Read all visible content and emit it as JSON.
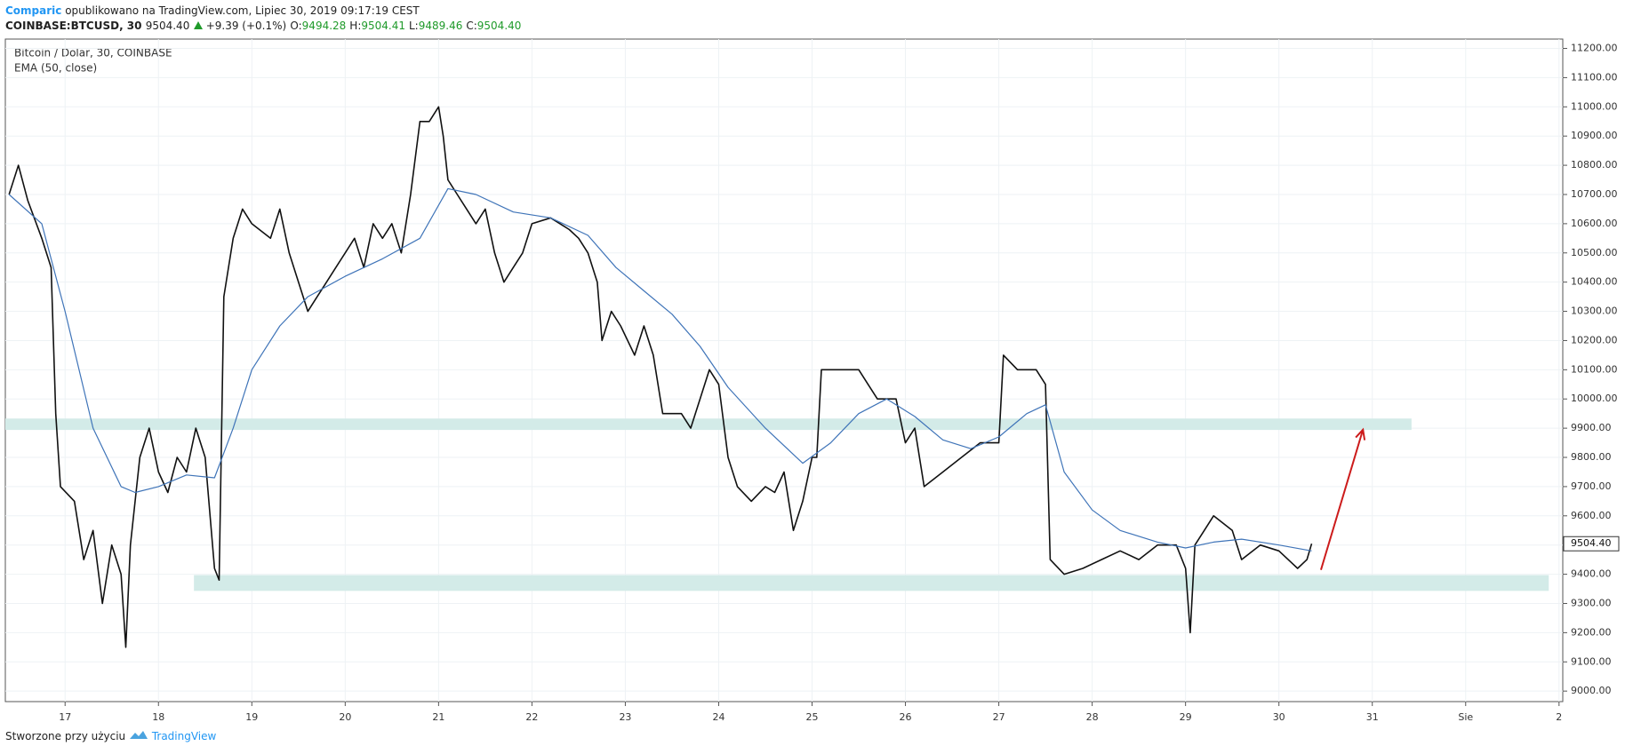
{
  "header": {
    "author": "Comparic",
    "published": "opublikowano na TradingView.com, Lipiec 30, 2019 09:17:19 CEST",
    "symbol": "COINBASE:BTCUSD, 30",
    "price": "9504.40",
    "change": "+9.39 (+0.1%)",
    "ohlc": [
      {
        "label": "O:",
        "value": "9494.28"
      },
      {
        "label": "H:",
        "value": "9504.41"
      },
      {
        "label": "L:",
        "value": "9489.46"
      },
      {
        "label": "C:",
        "value": "9504.40"
      }
    ]
  },
  "footer": {
    "text": "Stworzone przy użyciu",
    "brand": "TradingView"
  },
  "chart_data": {
    "type": "line",
    "xlim": [
      16.36,
      33.04
    ],
    "xticks": [
      17,
      18,
      19,
      20,
      21,
      22,
      23,
      24,
      25,
      26,
      27,
      28,
      29,
      30,
      31,
      {
        "value": 32,
        "label": "Sie"
      },
      {
        "value": 33,
        "label": "2"
      }
    ],
    "ylim": [
      8964,
      11232
    ],
    "yticks": [
      {
        "value": 9000,
        "label": "9000.00"
      },
      {
        "value": 9100,
        "label": "9100.00"
      },
      {
        "value": 9200,
        "label": "9200.00"
      },
      {
        "value": 9300,
        "label": "9300.00"
      },
      {
        "value": 9400,
        "label": "9400.00"
      },
      {
        "value": 9500,
        "label": "9500.00"
      },
      {
        "value": 9600,
        "label": "9600.00"
      },
      {
        "value": 9700,
        "label": "9700.00"
      },
      {
        "value": 9800,
        "label": "9800.00"
      },
      {
        "value": 9900,
        "label": "9900.00"
      },
      {
        "value": 10000,
        "label": "10000.00"
      },
      {
        "value": 10100,
        "label": "10100.00"
      },
      {
        "value": 10200,
        "label": "10200.00"
      },
      {
        "value": 10300,
        "label": "10300.00"
      },
      {
        "value": 10400,
        "label": "10400.00"
      },
      {
        "value": 10500,
        "label": "10500.00"
      },
      {
        "value": 10600,
        "label": "10600.00"
      },
      {
        "value": 10700,
        "label": "10700.00"
      },
      {
        "value": 10800,
        "label": "10800.00"
      },
      {
        "value": 10900,
        "label": "10900.00"
      },
      {
        "value": 11000,
        "label": "11000.00"
      },
      {
        "value": 11100,
        "label": "11100.00"
      },
      {
        "value": 11200,
        "label": "11200.00"
      }
    ],
    "grid": true,
    "last_price": {
      "value": 9504.4,
      "label": "9504.40"
    },
    "series": [
      {
        "name": "Bitcoin / Dolar, 30, COINBASE",
        "color": "#111111",
        "x": [
          16.4,
          16.5,
          16.6,
          16.75,
          16.85,
          16.9,
          16.95,
          17.1,
          17.2,
          17.3,
          17.4,
          17.5,
          17.6,
          17.65,
          17.7,
          17.8,
          17.9,
          18.0,
          18.1,
          18.2,
          18.3,
          18.4,
          18.5,
          18.6,
          18.65,
          18.7,
          18.8,
          18.9,
          19.0,
          19.2,
          19.3,
          19.4,
          19.5,
          19.6,
          19.7,
          19.8,
          19.9,
          20.0,
          20.1,
          20.2,
          20.3,
          20.4,
          20.5,
          20.6,
          20.7,
          20.8,
          20.9,
          21.0,
          21.05,
          21.1,
          21.2,
          21.3,
          21.4,
          21.5,
          21.6,
          21.7,
          21.8,
          21.9,
          22.0,
          22.2,
          22.4,
          22.5,
          22.6,
          22.7,
          22.75,
          22.85,
          22.95,
          23.1,
          23.2,
          23.3,
          23.4,
          23.5,
          23.6,
          23.7,
          23.8,
          23.9,
          24.0,
          24.1,
          24.2,
          24.35,
          24.5,
          24.6,
          24.7,
          24.8,
          24.9,
          25.0,
          25.05,
          25.1,
          25.3,
          25.5,
          25.6,
          25.7,
          25.9,
          26.0,
          26.1,
          26.2,
          26.4,
          26.6,
          26.8,
          27.0,
          27.05,
          27.2,
          27.4,
          27.5,
          27.55,
          27.7,
          27.9,
          28.1,
          28.3,
          28.5,
          28.7,
          28.9,
          29.0,
          29.05,
          29.1,
          29.2,
          29.3,
          29.5,
          29.6,
          29.8,
          30.0,
          30.2,
          30.3,
          30.35
        ],
        "values": [
          10700,
          10800,
          10680,
          10550,
          10450,
          9950,
          9700,
          9650,
          9450,
          9550,
          9300,
          9500,
          9400,
          9150,
          9500,
          9800,
          9900,
          9750,
          9680,
          9800,
          9750,
          9900,
          9800,
          9420,
          9380,
          10350,
          10550,
          10650,
          10600,
          10550,
          10650,
          10500,
          10400,
          10300,
          10350,
          10400,
          10450,
          10500,
          10550,
          10450,
          10600,
          10550,
          10600,
          10500,
          10700,
          10950,
          10950,
          11000,
          10900,
          10750,
          10700,
          10650,
          10600,
          10650,
          10500,
          10400,
          10450,
          10500,
          10600,
          10620,
          10580,
          10550,
          10500,
          10400,
          10200,
          10300,
          10250,
          10150,
          10250,
          10150,
          9950,
          9950,
          9950,
          9900,
          10000,
          10100,
          10050,
          9800,
          9700,
          9650,
          9700,
          9680,
          9750,
          9550,
          9650,
          9800,
          9800,
          10100,
          10100,
          10100,
          10050,
          10000,
          10000,
          9850,
          9900,
          9700,
          9750,
          9800,
          9850,
          9850,
          10150,
          10100,
          10100,
          10050,
          9450,
          9400,
          9420,
          9450,
          9480,
          9450,
          9500,
          9500,
          9420,
          9200,
          9500,
          9550,
          9600,
          9550,
          9450,
          9500,
          9480,
          9420,
          9450,
          9504.4
        ]
      },
      {
        "name": "EMA (50, close)",
        "color": "#3f74b8",
        "x": [
          16.4,
          16.75,
          17.0,
          17.3,
          17.6,
          17.75,
          18.0,
          18.3,
          18.6,
          18.8,
          19.0,
          19.3,
          19.6,
          20.0,
          20.4,
          20.8,
          21.1,
          21.4,
          21.8,
          22.2,
          22.6,
          22.9,
          23.2,
          23.5,
          23.8,
          24.1,
          24.5,
          24.9,
          25.2,
          25.5,
          25.8,
          26.1,
          26.4,
          26.7,
          27.0,
          27.3,
          27.5,
          27.7,
          28.0,
          28.3,
          28.7,
          29.0,
          29.3,
          29.6,
          30.0,
          30.35
        ],
        "values": [
          10700,
          10600,
          10300,
          9900,
          9700,
          9680,
          9700,
          9740,
          9730,
          9900,
          10100,
          10250,
          10350,
          10420,
          10480,
          10550,
          10720,
          10700,
          10640,
          10620,
          10560,
          10450,
          10370,
          10290,
          10180,
          10040,
          9900,
          9780,
          9850,
          9950,
          10000,
          9940,
          9860,
          9830,
          9870,
          9950,
          9980,
          9750,
          9620,
          9550,
          9510,
          9490,
          9510,
          9520,
          9500,
          9480
        ]
      }
    ],
    "zones": [
      {
        "x": [
          16.36,
          31.42
        ],
        "y": [
          9894,
          9933
        ],
        "color": "#d3ebe8"
      },
      {
        "x": [
          18.38,
          32.89
        ],
        "y": [
          9343,
          9397
        ],
        "color": "#d3ebe8"
      }
    ],
    "arrow": {
      "x": [
        30.45,
        30.9
      ],
      "y": [
        9415,
        9895
      ],
      "color": "#cc1b1b"
    }
  }
}
